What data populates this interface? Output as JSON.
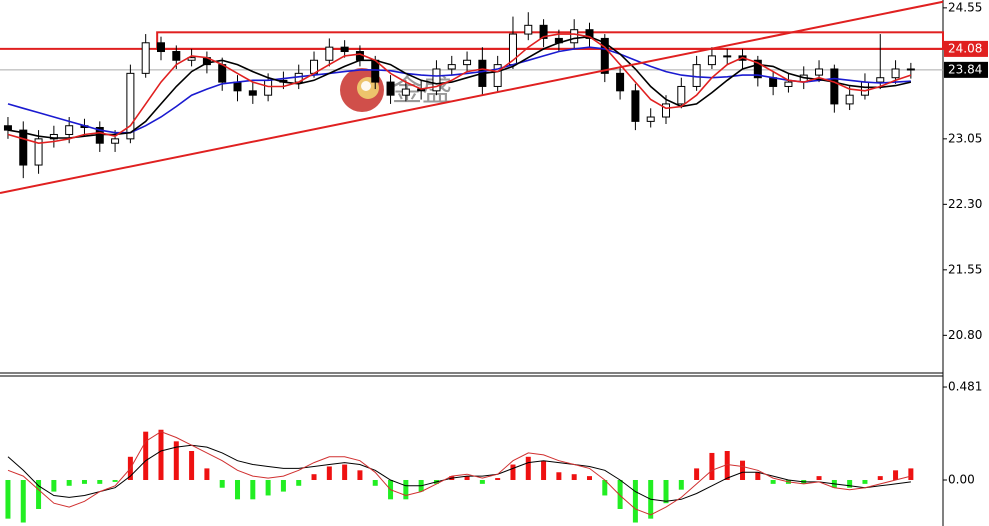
{
  "chart_data": [
    {
      "type": "candlestick",
      "xlim": [
        -0.52,
        61.1
      ],
      "ylim": [
        20.38,
        24.64
      ],
      "yticks": [
        24.55,
        23.05,
        {
          "value": 22.3,
          "label": "22.30"
        },
        21.55,
        {
          "value": 20.8,
          "label": "20.80"
        }
      ],
      "candles": {
        "open": [
          23.2,
          23.15,
          22.75,
          23.05,
          23.1,
          23.2,
          23.18,
          23.0,
          23.05,
          23.8,
          24.15,
          24.05,
          23.95,
          23.98,
          23.9,
          23.7,
          23.6,
          23.55,
          23.72,
          23.7,
          23.8,
          23.95,
          24.1,
          24.05,
          23.95,
          23.7,
          23.55,
          23.62,
          23.6,
          23.85,
          23.9,
          23.95,
          23.65,
          23.9,
          24.25,
          24.35,
          24.2,
          24.15,
          24.3,
          24.2,
          23.8,
          23.6,
          23.25,
          23.3,
          23.45,
          23.65,
          23.9,
          24.0,
          24.0,
          23.95,
          23.75,
          23.65,
          23.7,
          23.78,
          23.85,
          23.45,
          23.55,
          23.7,
          23.75,
          23.85
        ],
        "high": [
          23.3,
          23.25,
          23.15,
          23.2,
          23.3,
          23.28,
          23.25,
          23.15,
          23.9,
          24.25,
          24.22,
          24.12,
          24.08,
          24.05,
          23.98,
          23.78,
          23.7,
          23.8,
          23.82,
          23.9,
          24.05,
          24.2,
          24.18,
          24.12,
          24.0,
          23.78,
          23.72,
          23.72,
          23.95,
          24.0,
          24.05,
          24.1,
          24.0,
          24.45,
          24.5,
          24.42,
          24.3,
          24.42,
          24.38,
          24.25,
          23.88,
          23.68,
          23.4,
          23.55,
          23.75,
          24.0,
          24.1,
          24.08,
          24.08,
          24.0,
          23.82,
          23.8,
          23.88,
          23.95,
          23.9,
          23.65,
          23.8,
          24.25,
          23.95,
          23.92
        ],
        "low": [
          23.05,
          22.6,
          22.65,
          22.95,
          23.0,
          23.08,
          22.9,
          22.9,
          23.0,
          23.75,
          23.95,
          23.85,
          23.88,
          23.8,
          23.6,
          23.48,
          23.45,
          23.48,
          23.62,
          23.62,
          23.75,
          23.88,
          23.98,
          23.88,
          23.62,
          23.45,
          23.48,
          23.5,
          23.55,
          23.78,
          23.82,
          23.55,
          23.58,
          23.85,
          24.18,
          24.1,
          24.05,
          24.08,
          24.1,
          23.7,
          23.5,
          23.15,
          23.18,
          23.22,
          23.4,
          23.6,
          23.85,
          23.9,
          23.85,
          23.65,
          23.55,
          23.58,
          23.62,
          23.7,
          23.35,
          23.38,
          23.5,
          23.62,
          23.68,
          23.74
        ],
        "close": [
          23.15,
          22.75,
          23.05,
          23.1,
          23.2,
          23.18,
          23.0,
          23.05,
          23.8,
          24.15,
          24.05,
          23.95,
          23.98,
          23.9,
          23.7,
          23.6,
          23.55,
          23.72,
          23.7,
          23.8,
          23.95,
          24.1,
          24.05,
          23.95,
          23.7,
          23.55,
          23.62,
          23.6,
          23.85,
          23.9,
          23.95,
          23.65,
          23.9,
          24.25,
          24.35,
          24.2,
          24.15,
          24.3,
          24.2,
          23.8,
          23.6,
          23.25,
          23.3,
          23.45,
          23.65,
          23.9,
          24.0,
          24.0,
          23.95,
          23.75,
          23.65,
          23.7,
          23.78,
          23.85,
          23.45,
          23.55,
          23.7,
          23.75,
          23.85,
          23.84
        ]
      },
      "series": [
        {
          "color": "#1a1ad0",
          "values": [
            23.45,
            23.4,
            23.35,
            23.3,
            23.25,
            23.2,
            23.15,
            23.12,
            23.12,
            23.2,
            23.3,
            23.42,
            23.55,
            23.62,
            23.68,
            23.7,
            23.72,
            23.72,
            23.74,
            23.76,
            23.78,
            23.8,
            23.82,
            23.84,
            23.84,
            23.83,
            23.8,
            23.78,
            23.77,
            23.78,
            23.8,
            23.82,
            23.85,
            23.9,
            23.95,
            24.0,
            24.05,
            24.08,
            24.1,
            24.08,
            24.02,
            23.95,
            23.88,
            23.82,
            23.78,
            23.76,
            23.75,
            23.76,
            23.78,
            23.78,
            23.75,
            23.72,
            23.7,
            23.72,
            23.74,
            23.72,
            23.7,
            23.69,
            23.7,
            23.71
          ]
        },
        {
          "color": "#000000",
          "values": [
            23.15,
            23.12,
            23.08,
            23.06,
            23.06,
            23.08,
            23.1,
            23.1,
            23.12,
            23.25,
            23.45,
            23.65,
            23.82,
            23.92,
            23.95,
            23.9,
            23.82,
            23.75,
            23.7,
            23.68,
            23.72,
            23.8,
            23.88,
            23.95,
            23.95,
            23.9,
            23.8,
            23.72,
            23.68,
            23.7,
            23.75,
            23.8,
            23.82,
            23.88,
            23.98,
            24.08,
            24.15,
            24.2,
            24.22,
            24.15,
            24.02,
            23.85,
            23.65,
            23.5,
            23.42,
            23.45,
            23.58,
            23.72,
            23.85,
            23.9,
            23.88,
            23.8,
            23.75,
            23.73,
            23.7,
            23.66,
            23.64,
            23.64,
            23.66,
            23.7
          ]
        },
        {
          "color": "#e02020",
          "values": [
            23.1,
            23.05,
            23.0,
            23.02,
            23.05,
            23.1,
            23.12,
            23.08,
            23.2,
            23.45,
            23.7,
            23.9,
            24.0,
            23.98,
            23.9,
            23.8,
            23.7,
            23.65,
            23.65,
            23.7,
            23.8,
            23.9,
            24.0,
            24.02,
            23.95,
            23.8,
            23.7,
            23.62,
            23.65,
            23.72,
            23.82,
            23.85,
            23.82,
            23.95,
            24.1,
            24.22,
            24.25,
            24.25,
            24.22,
            24.1,
            23.9,
            23.7,
            23.5,
            23.4,
            23.42,
            23.55,
            23.75,
            23.9,
            23.98,
            23.92,
            23.82,
            23.72,
            23.7,
            23.75,
            23.7,
            23.62,
            23.6,
            23.65,
            23.72,
            23.78
          ]
        }
      ],
      "price_lines": [
        {
          "value": 24.08,
          "color": "#e02020"
        },
        {
          "value": 23.84,
          "color": "#000000"
        }
      ],
      "zone": {
        "x": [
          9.75,
          61.1
        ],
        "y": [
          24.08,
          24.27
        ],
        "color": "#e02020"
      },
      "trendline": {
        "x": [
          -0.52,
          61.1
        ],
        "y": [
          22.43,
          24.62
        ],
        "color": "#e02020"
      },
      "watermark": "金盛"
    },
    {
      "type": "bar",
      "xlim": [
        -0.52,
        61.1
      ],
      "ylim": [
        -0.238,
        0.538
      ],
      "yticks": [
        0.481,
        {
          "value": 0,
          "label": "0.00"
        }
      ],
      "positive_color": "#ee1111",
      "negative_color": "#22ee22",
      "values": [
        -0.2,
        -0.22,
        -0.15,
        -0.06,
        -0.03,
        -0.02,
        -0.02,
        -0.01,
        0.12,
        0.25,
        0.26,
        0.2,
        0.15,
        0.06,
        -0.04,
        -0.1,
        -0.1,
        -0.08,
        -0.06,
        -0.03,
        0.03,
        0.07,
        0.08,
        0.05,
        -0.03,
        -0.1,
        -0.1,
        -0.06,
        -0.02,
        0.02,
        0.02,
        -0.02,
        0.01,
        0.08,
        0.12,
        0.1,
        0.04,
        0.03,
        0.02,
        -0.08,
        -0.15,
        -0.22,
        -0.2,
        -0.12,
        -0.05,
        0.06,
        0.14,
        0.15,
        0.1,
        0.04,
        -0.02,
        -0.02,
        -0.02,
        0.02,
        -0.04,
        -0.04,
        -0.02,
        0.02,
        0.05,
        0.06
      ],
      "series": [
        {
          "color": "#000000",
          "values": [
            0.12,
            0.05,
            -0.03,
            -0.08,
            -0.09,
            -0.08,
            -0.06,
            -0.04,
            0.02,
            0.1,
            0.15,
            0.17,
            0.18,
            0.17,
            0.14,
            0.1,
            0.08,
            0.07,
            0.06,
            0.06,
            0.07,
            0.08,
            0.09,
            0.08,
            0.05,
            0.0,
            -0.03,
            -0.03,
            -0.01,
            0.01,
            0.02,
            0.02,
            0.03,
            0.06,
            0.09,
            0.1,
            0.09,
            0.08,
            0.07,
            0.05,
            0.0,
            -0.06,
            -0.1,
            -0.11,
            -0.1,
            -0.07,
            -0.03,
            0.01,
            0.04,
            0.04,
            0.02,
            0.0,
            -0.01,
            -0.01,
            -0.02,
            -0.03,
            -0.04,
            -0.03,
            -0.02,
            -0.01
          ]
        },
        {
          "color": "#d03030",
          "values": [
            0.05,
            0.02,
            -0.05,
            -0.12,
            -0.14,
            -0.11,
            -0.06,
            -0.03,
            0.06,
            0.2,
            0.25,
            0.22,
            0.18,
            0.14,
            0.1,
            0.05,
            0.02,
            0.01,
            0.02,
            0.05,
            0.09,
            0.12,
            0.12,
            0.1,
            0.04,
            -0.05,
            -0.08,
            -0.06,
            -0.02,
            0.02,
            0.03,
            0.01,
            0.03,
            0.1,
            0.14,
            0.13,
            0.1,
            0.08,
            0.06,
            0.0,
            -0.08,
            -0.15,
            -0.18,
            -0.14,
            -0.09,
            -0.02,
            0.05,
            0.08,
            0.07,
            0.05,
            0.01,
            -0.01,
            -0.02,
            -0.01,
            -0.04,
            -0.05,
            -0.04,
            -0.02,
            0.0,
            0.02
          ]
        }
      ]
    }
  ]
}
